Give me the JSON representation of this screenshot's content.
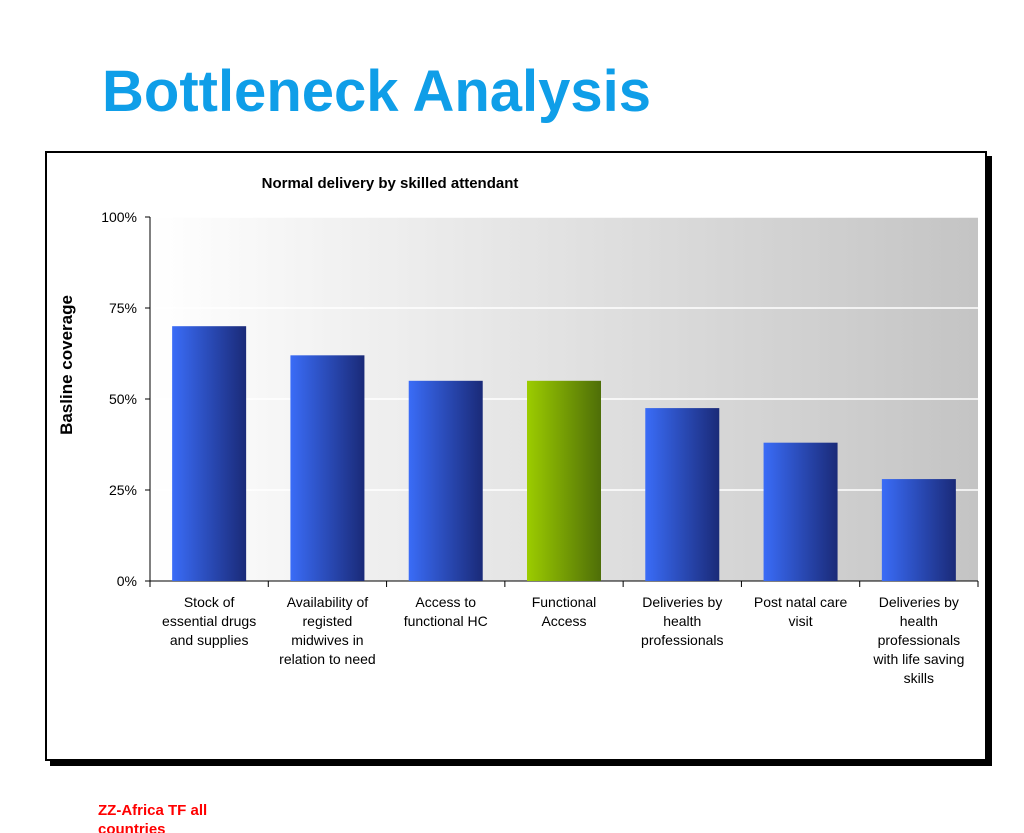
{
  "slide": {
    "title": "Bottleneck Analysis",
    "footnote": "ZZ-Africa TF all countries"
  },
  "colors": {
    "title": "#0f9ee8",
    "bar_blue_light": "#3a6cf7",
    "bar_blue_dark": "#1a2a78",
    "bar_green_light": "#9ccc00",
    "bar_green_dark": "#4e6e08",
    "footnote": "#ff0000"
  },
  "chart_data": {
    "type": "bar",
    "title": "Normal delivery by skilled attendant",
    "xlabel": "",
    "ylabel": "Basline coverage",
    "ylim": [
      0,
      100
    ],
    "yticks": [
      0,
      25,
      50,
      75,
      100
    ],
    "ytick_labels": [
      "0%",
      "25%",
      "50%",
      "75%",
      "100%"
    ],
    "grid": true,
    "legend": "none",
    "categories": [
      "Stock of essential drugs and supplies",
      "Availability of registed midwives in relation to need",
      "Access to functional HC",
      "Functional Access",
      "Deliveries by health professionals",
      "Post natal care visit",
      "Deliveries by health professionals with life saving skills"
    ],
    "category_lines": [
      [
        "Stock of",
        "essential drugs",
        "and supplies"
      ],
      [
        "Availability of",
        "registed",
        "midwives in",
        "relation to need"
      ],
      [
        "Access to",
        "functional HC"
      ],
      [
        "Functional",
        "Access"
      ],
      [
        "Deliveries by",
        "health",
        "professionals"
      ],
      [
        "Post natal care",
        "visit"
      ],
      [
        "Deliveries by",
        "health",
        "professionals",
        "with life saving",
        "skills"
      ]
    ],
    "values": [
      70,
      62,
      55,
      55,
      47.5,
      38,
      28
    ],
    "highlight_index": 3
  }
}
